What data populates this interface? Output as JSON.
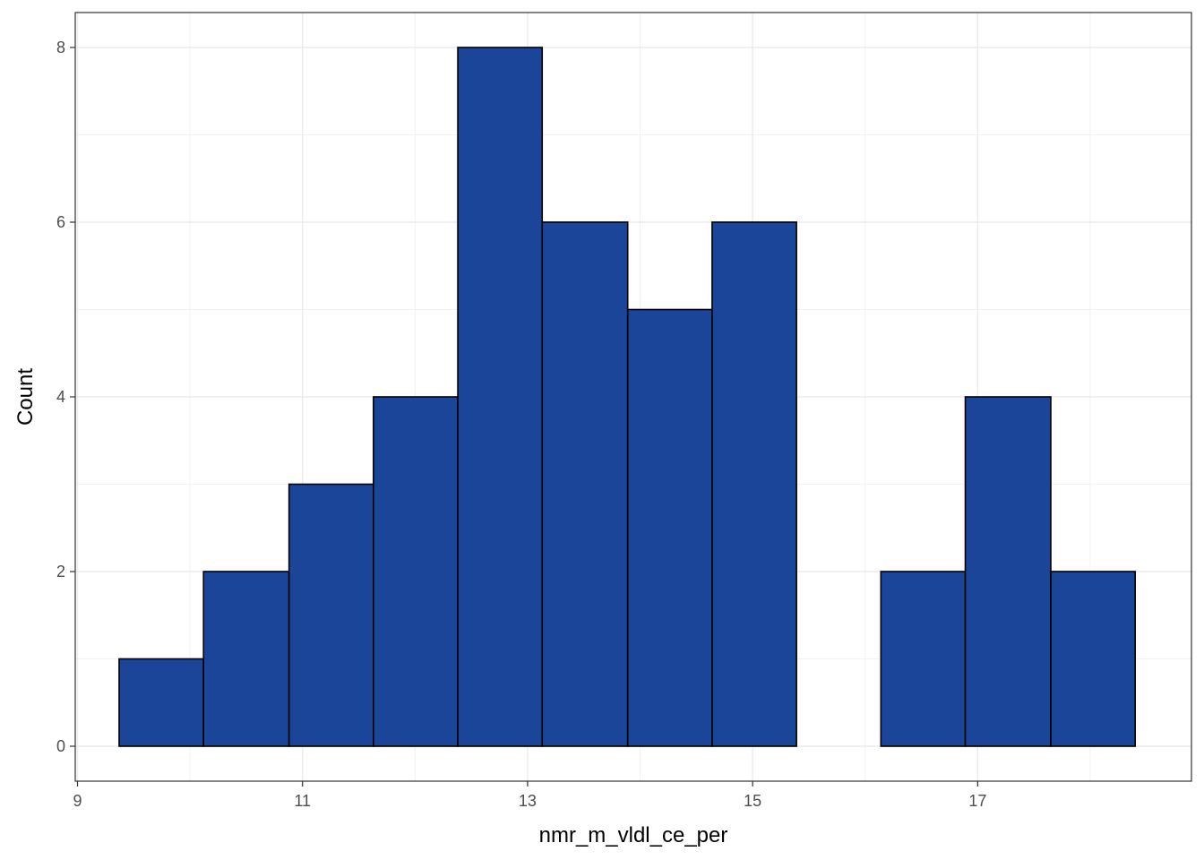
{
  "chart_data": {
    "type": "bar",
    "subtype": "histogram",
    "title": "",
    "xlabel": "nmr_m_vldl_ce_per",
    "ylabel": "Count",
    "xlim": [
      8.98,
      18.9
    ],
    "ylim": [
      -0.4,
      8.4
    ],
    "x_ticks": [
      9,
      11,
      13,
      15,
      17
    ],
    "y_ticks": [
      0,
      2,
      4,
      6,
      8
    ],
    "grid": true,
    "bar_color": "#1A4599",
    "bar_edge_color": "#000000",
    "bins": [
      {
        "x0": 9.37,
        "x1": 10.12,
        "count": 1
      },
      {
        "x0": 10.12,
        "x1": 10.88,
        "count": 2
      },
      {
        "x0": 10.88,
        "x1": 11.63,
        "count": 3
      },
      {
        "x0": 11.63,
        "x1": 12.38,
        "count": 4
      },
      {
        "x0": 12.38,
        "x1": 13.13,
        "count": 8
      },
      {
        "x0": 13.13,
        "x1": 13.89,
        "count": 6
      },
      {
        "x0": 13.89,
        "x1": 14.64,
        "count": 5
      },
      {
        "x0": 14.64,
        "x1": 15.39,
        "count": 6
      },
      {
        "x0": 15.39,
        "x1": 16.14,
        "count": 0
      },
      {
        "x0": 16.14,
        "x1": 16.89,
        "count": 2
      },
      {
        "x0": 16.89,
        "x1": 17.65,
        "count": 4
      },
      {
        "x0": 17.65,
        "x1": 18.4,
        "count": 2
      }
    ]
  }
}
